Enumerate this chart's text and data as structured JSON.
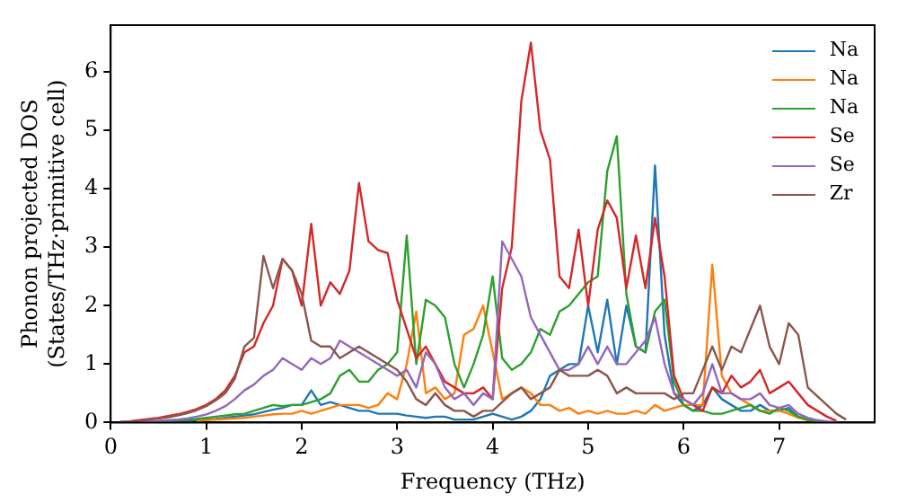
{
  "chart_data": {
    "type": "line",
    "xlabel": "Frequency (THz)",
    "ylabel": "Phonon projected DOS\n(States/THz·primitive cell)",
    "xlim": [
      0,
      8
    ],
    "xticks": [
      0,
      1,
      2,
      3,
      4,
      5,
      6,
      7
    ],
    "ylim": [
      0,
      6.8
    ],
    "yticks": [
      0,
      1,
      2,
      3,
      4,
      5,
      6
    ],
    "grid": false,
    "legend": "top right",
    "x": [
      0.1,
      0.2,
      0.3,
      0.4,
      0.5,
      0.6,
      0.7,
      0.8,
      0.9,
      1,
      1.1,
      1.2,
      1.3,
      1.4,
      1.5,
      1.6,
      1.7,
      1.8,
      1.9,
      2,
      2.1,
      2.2,
      2.3,
      2.4,
      2.5,
      2.6,
      2.7,
      2.8,
      2.9,
      3,
      3.1,
      3.2,
      3.3,
      3.4,
      3.5,
      3.6,
      3.7,
      3.8,
      3.9,
      4,
      4.1,
      4.2,
      4.3,
      4.4,
      4.5,
      4.6,
      4.7,
      4.8,
      4.9,
      5,
      5.1,
      5.2,
      5.3,
      5.4,
      5.5,
      5.6,
      5.7,
      5.8,
      5.9,
      6,
      6.1,
      6.2,
      6.3,
      6.4,
      6.5,
      6.6,
      6.7,
      6.8,
      6.9,
      7,
      7.1,
      7.2,
      7.3,
      7.4,
      7.5,
      7.6,
      7.7
    ],
    "series": [
      {
        "name": "Na",
        "color": "#1f77b4",
        "values": [
          null,
          null,
          null,
          null,
          null,
          0.02,
          0.03,
          0.03,
          0.04,
          0.05,
          0.06,
          0.08,
          0.1,
          0.12,
          0.14,
          0.18,
          0.22,
          0.25,
          0.3,
          0.3,
          0.55,
          0.3,
          0.35,
          0.3,
          0.25,
          0.2,
          0.2,
          0.15,
          0.15,
          0.15,
          0.12,
          0.1,
          0.08,
          0.1,
          0.1,
          0.05,
          0.05,
          0.05,
          0.1,
          0.15,
          0.1,
          0.05,
          0.1,
          0.2,
          0.4,
          0.8,
          0.9,
          1.0,
          1.0,
          2.0,
          1.2,
          2.1,
          1.0,
          2.0,
          1.3,
          1.2,
          4.4,
          1.5,
          0.5,
          0.3,
          0.2,
          0.3,
          0.6,
          0.4,
          0.3,
          0.2,
          0.2,
          0.3,
          0.2,
          0.2,
          0.25,
          0.1,
          0.05,
          null,
          null,
          null,
          null
        ]
      },
      {
        "name": "Na",
        "color": "#ff7f0e",
        "values": [
          null,
          null,
          null,
          null,
          null,
          null,
          null,
          null,
          0.03,
          0.04,
          0.05,
          0.06,
          0.07,
          0.08,
          0.1,
          0.12,
          0.14,
          0.15,
          0.15,
          0.2,
          0.15,
          0.2,
          0.25,
          0.3,
          0.3,
          0.3,
          0.25,
          0.3,
          0.5,
          0.4,
          1.0,
          1.9,
          0.5,
          0.6,
          0.4,
          0.5,
          1.5,
          1.6,
          2.0,
          1.2,
          0.4,
          0.5,
          0.6,
          0.5,
          0.3,
          0.3,
          0.2,
          0.25,
          0.15,
          0.2,
          0.15,
          0.2,
          0.15,
          0.15,
          0.2,
          0.15,
          0.3,
          0.2,
          0.25,
          0.3,
          0.3,
          0.3,
          2.7,
          0.8,
          0.5,
          0.4,
          0.3,
          0.2,
          0.2,
          0.2,
          0.15,
          0.08,
          0.04,
          0.02,
          null,
          null,
          null
        ]
      },
      {
        "name": "Na",
        "color": "#2ca02c",
        "values": [
          null,
          null,
          null,
          0.02,
          0.02,
          0.03,
          0.04,
          0.05,
          0.06,
          0.08,
          0.1,
          0.12,
          0.14,
          0.15,
          0.2,
          0.25,
          0.3,
          0.28,
          0.3,
          0.3,
          0.35,
          0.4,
          0.5,
          0.8,
          0.9,
          0.7,
          0.7,
          0.9,
          1.0,
          1.2,
          3.2,
          1.0,
          2.1,
          2.0,
          1.8,
          1.0,
          0.6,
          1.0,
          1.5,
          2.5,
          1.1,
          0.9,
          1.0,
          1.2,
          1.6,
          1.5,
          1.9,
          2.0,
          2.2,
          2.4,
          2.5,
          4.3,
          4.9,
          2.2,
          1.3,
          1.2,
          1.9,
          2.1,
          0.7,
          0.3,
          0.2,
          0.2,
          0.15,
          0.15,
          0.2,
          0.25,
          0.3,
          0.2,
          0.15,
          0.25,
          0.2,
          0.1,
          0.05,
          0.02,
          0.01,
          null,
          null
        ]
      },
      {
        "name": "Se",
        "color": "#d62728",
        "values": [
          0.01,
          0.02,
          0.04,
          0.06,
          0.08,
          0.11,
          0.14,
          0.18,
          0.23,
          0.3,
          0.4,
          0.55,
          0.8,
          1.2,
          1.3,
          1.7,
          2.0,
          2.8,
          2.6,
          2.0,
          3.4,
          2.0,
          2.4,
          2.2,
          2.6,
          4.1,
          3.1,
          2.95,
          2.9,
          2.1,
          1.6,
          1.1,
          1.3,
          1.0,
          0.7,
          0.6,
          0.5,
          0.5,
          0.6,
          0.4,
          2.3,
          3.0,
          5.5,
          6.5,
          5.0,
          4.5,
          2.5,
          2.3,
          3.3,
          2.0,
          3.3,
          3.8,
          3.5,
          2.3,
          3.2,
          2.3,
          3.5,
          2.5,
          0.8,
          0.4,
          0.3,
          0.2,
          0.6,
          0.5,
          0.8,
          0.6,
          0.7,
          0.9,
          0.5,
          0.6,
          0.7,
          0.5,
          0.3,
          0.2,
          0.1,
          0.03,
          null
        ]
      },
      {
        "name": "Se",
        "color": "#9467bd",
        "values": [
          null,
          null,
          0.02,
          0.02,
          0.03,
          0.04,
          0.05,
          0.07,
          0.1,
          0.14,
          0.2,
          0.28,
          0.4,
          0.55,
          0.65,
          0.8,
          0.9,
          1.1,
          1.0,
          0.9,
          1.1,
          1.0,
          1.1,
          1.4,
          1.3,
          1.2,
          1.1,
          1.0,
          0.9,
          0.8,
          0.9,
          0.6,
          1.2,
          1.0,
          0.6,
          0.4,
          0.5,
          0.3,
          0.5,
          0.4,
          3.1,
          2.8,
          2.5,
          1.8,
          1.5,
          1.2,
          0.9,
          0.9,
          1.0,
          1.3,
          1.0,
          1.3,
          1.0,
          1.0,
          1.2,
          1.4,
          1.8,
          1.0,
          0.5,
          0.4,
          0.3,
          0.5,
          1.0,
          0.5,
          0.5,
          0.4,
          0.4,
          0.5,
          0.3,
          0.25,
          0.3,
          0.15,
          0.08,
          0.04,
          0.02,
          0.01,
          null
        ]
      },
      {
        "name": "Zr",
        "color": "#8c564b",
        "values": [
          0.01,
          0.02,
          0.03,
          0.05,
          0.07,
          0.09,
          0.12,
          0.16,
          0.21,
          0.28,
          0.38,
          0.5,
          0.75,
          1.3,
          1.45,
          2.85,
          2.3,
          2.8,
          2.6,
          2.2,
          1.4,
          1.3,
          1.3,
          1.1,
          1.2,
          1.3,
          1.2,
          1.1,
          1.0,
          0.9,
          0.7,
          0.4,
          0.3,
          0.5,
          0.3,
          0.2,
          0.2,
          0.1,
          0.2,
          0.2,
          0.35,
          0.5,
          0.6,
          0.4,
          0.5,
          0.6,
          0.9,
          0.8,
          0.8,
          0.8,
          0.9,
          0.8,
          0.5,
          0.6,
          0.5,
          0.5,
          0.5,
          0.5,
          0.4,
          0.5,
          0.5,
          0.9,
          1.3,
          0.9,
          1.3,
          1.2,
          1.6,
          2.0,
          1.3,
          1.0,
          1.7,
          1.5,
          0.6,
          0.45,
          0.3,
          0.15,
          0.05
        ]
      }
    ]
  }
}
